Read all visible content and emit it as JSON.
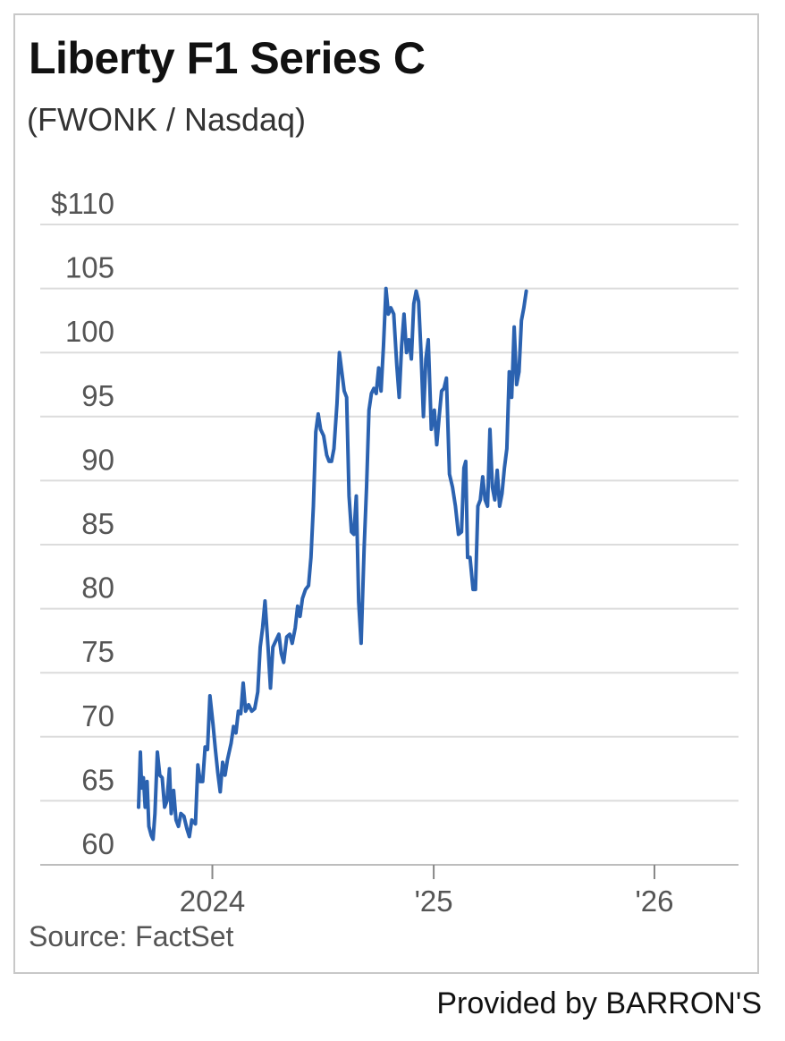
{
  "chart_data": {
    "type": "line",
    "title": "Liberty F1 Series C",
    "subtitle": "(FWONK / Nasdaq)",
    "source": "Source: FactSet",
    "credit": "Provided by BARRON'S",
    "ylim": [
      60,
      110
    ],
    "y_ticks": [
      {
        "value": 110,
        "label": "$110"
      },
      {
        "value": 105,
        "label": "105"
      },
      {
        "value": 100,
        "label": "100"
      },
      {
        "value": 95,
        "label": "95"
      },
      {
        "value": 90,
        "label": "90"
      },
      {
        "value": 85,
        "label": "85"
      },
      {
        "value": 80,
        "label": "80"
      },
      {
        "value": 75,
        "label": "75"
      },
      {
        "value": 70,
        "label": "70"
      },
      {
        "value": 65,
        "label": "65"
      },
      {
        "value": 60,
        "label": "60"
      }
    ],
    "x_range": [
      "2023-09-01",
      "2026-05-20"
    ],
    "x_ticks": [
      {
        "date": "2024-01-01",
        "label": "2024"
      },
      {
        "date": "2025-01-01",
        "label": "'25"
      },
      {
        "date": "2026-01-01",
        "label": "'26"
      }
    ],
    "grid": true,
    "line_color": "#2b62b0",
    "series": [
      {
        "values": [
          [
            "2023-09-01",
            64.5
          ],
          [
            "2023-09-04",
            68.8
          ],
          [
            "2023-09-06",
            66.0
          ],
          [
            "2023-09-09",
            66.8
          ],
          [
            "2023-09-12",
            64.5
          ],
          [
            "2023-09-15",
            66.5
          ],
          [
            "2023-09-18",
            63.0
          ],
          [
            "2023-09-22",
            62.3
          ],
          [
            "2023-09-25",
            62.0
          ],
          [
            "2023-09-28",
            64.0
          ],
          [
            "2023-10-02",
            68.8
          ],
          [
            "2023-10-06",
            67.0
          ],
          [
            "2023-10-10",
            66.8
          ],
          [
            "2023-10-14",
            64.5
          ],
          [
            "2023-10-18",
            65.0
          ],
          [
            "2023-10-22",
            67.5
          ],
          [
            "2023-10-25",
            64.0
          ],
          [
            "2023-10-29",
            65.8
          ],
          [
            "2023-11-02",
            63.5
          ],
          [
            "2023-11-06",
            63.0
          ],
          [
            "2023-11-10",
            64.0
          ],
          [
            "2023-11-15",
            63.8
          ],
          [
            "2023-11-20",
            62.8
          ],
          [
            "2023-11-24",
            62.2
          ],
          [
            "2023-11-28",
            63.5
          ],
          [
            "2023-12-04",
            63.2
          ],
          [
            "2023-12-08",
            67.8
          ],
          [
            "2023-12-12",
            66.5
          ],
          [
            "2023-12-16",
            66.5
          ],
          [
            "2023-12-20",
            69.2
          ],
          [
            "2023-12-24",
            69.0
          ],
          [
            "2023-12-28",
            73.2
          ],
          [
            "2024-01-02",
            71.0
          ],
          [
            "2024-01-06",
            69.0
          ],
          [
            "2024-01-10",
            67.2
          ],
          [
            "2024-01-14",
            65.7
          ],
          [
            "2024-01-18",
            68.0
          ],
          [
            "2024-01-22",
            67.0
          ],
          [
            "2024-01-26",
            68.2
          ],
          [
            "2024-02-01",
            69.5
          ],
          [
            "2024-02-05",
            70.8
          ],
          [
            "2024-02-09",
            70.3
          ],
          [
            "2024-02-13",
            72.0
          ],
          [
            "2024-02-17",
            71.8
          ],
          [
            "2024-02-21",
            74.2
          ],
          [
            "2024-02-25",
            72.0
          ],
          [
            "2024-03-01",
            72.5
          ],
          [
            "2024-03-06",
            72.0
          ],
          [
            "2024-03-11",
            72.2
          ],
          [
            "2024-03-16",
            73.5
          ],
          [
            "2024-03-20",
            77.0
          ],
          [
            "2024-03-24",
            78.5
          ],
          [
            "2024-03-28",
            80.6
          ],
          [
            "2024-04-02",
            77.0
          ],
          [
            "2024-04-06",
            73.8
          ],
          [
            "2024-04-10",
            77.0
          ],
          [
            "2024-04-15",
            77.5
          ],
          [
            "2024-04-20",
            78.0
          ],
          [
            "2024-04-24",
            76.5
          ],
          [
            "2024-04-28",
            75.8
          ],
          [
            "2024-05-03",
            77.8
          ],
          [
            "2024-05-08",
            78.0
          ],
          [
            "2024-05-12",
            77.3
          ],
          [
            "2024-05-17",
            78.5
          ],
          [
            "2024-05-21",
            80.2
          ],
          [
            "2024-05-25",
            79.4
          ],
          [
            "2024-05-29",
            80.8
          ],
          [
            "2024-06-03",
            81.5
          ],
          [
            "2024-06-08",
            81.8
          ],
          [
            "2024-06-12",
            84.0
          ],
          [
            "2024-06-16",
            88.0
          ],
          [
            "2024-06-20",
            93.8
          ],
          [
            "2024-06-24",
            95.2
          ],
          [
            "2024-06-28",
            94.0
          ],
          [
            "2024-07-03",
            93.5
          ],
          [
            "2024-07-08",
            92.0
          ],
          [
            "2024-07-12",
            91.5
          ],
          [
            "2024-07-16",
            91.5
          ],
          [
            "2024-07-20",
            92.5
          ],
          [
            "2024-07-25",
            96.0
          ],
          [
            "2024-07-29",
            100.0
          ],
          [
            "2024-08-02",
            98.5
          ],
          [
            "2024-08-06",
            97.0
          ],
          [
            "2024-08-10",
            96.5
          ],
          [
            "2024-08-14",
            88.8
          ],
          [
            "2024-08-18",
            86.0
          ],
          [
            "2024-08-22",
            85.8
          ],
          [
            "2024-08-26",
            88.8
          ],
          [
            "2024-08-30",
            80.5
          ],
          [
            "2024-09-03",
            77.3
          ],
          [
            "2024-09-08",
            84.8
          ],
          [
            "2024-09-12",
            89.5
          ],
          [
            "2024-09-16",
            95.5
          ],
          [
            "2024-09-20",
            96.8
          ],
          [
            "2024-09-24",
            97.2
          ],
          [
            "2024-09-28",
            96.8
          ],
          [
            "2024-10-02",
            98.8
          ],
          [
            "2024-10-06",
            97.0
          ],
          [
            "2024-10-10",
            100.5
          ],
          [
            "2024-10-14",
            105.0
          ],
          [
            "2024-10-18",
            103.0
          ],
          [
            "2024-10-22",
            103.5
          ],
          [
            "2024-10-27",
            103.0
          ],
          [
            "2024-11-01",
            99.0
          ],
          [
            "2024-11-05",
            96.5
          ],
          [
            "2024-11-09",
            100.5
          ],
          [
            "2024-11-13",
            103.0
          ],
          [
            "2024-11-17",
            100.0
          ],
          [
            "2024-11-21",
            101.0
          ],
          [
            "2024-11-25",
            99.5
          ],
          [
            "2024-11-29",
            103.8
          ],
          [
            "2024-12-03",
            104.8
          ],
          [
            "2024-12-07",
            104.0
          ],
          [
            "2024-12-11",
            100.0
          ],
          [
            "2024-12-15",
            95.0
          ],
          [
            "2024-12-19",
            99.5
          ],
          [
            "2024-12-23",
            101.0
          ],
          [
            "2024-12-28",
            94.0
          ],
          [
            "2025-01-02",
            95.5
          ],
          [
            "2025-01-06",
            92.8
          ],
          [
            "2025-01-10",
            95.0
          ],
          [
            "2025-01-14",
            97.0
          ],
          [
            "2025-01-18",
            97.2
          ],
          [
            "2025-01-22",
            98.0
          ],
          [
            "2025-01-27",
            90.5
          ],
          [
            "2025-02-01",
            89.5
          ],
          [
            "2025-02-06",
            88.0
          ],
          [
            "2025-02-11",
            85.8
          ],
          [
            "2025-02-16",
            86.0
          ],
          [
            "2025-02-20",
            91.0
          ],
          [
            "2025-02-23",
            91.5
          ],
          [
            "2025-02-26",
            84.0
          ],
          [
            "2025-03-02",
            84.0
          ],
          [
            "2025-03-07",
            81.5
          ],
          [
            "2025-03-11",
            81.5
          ],
          [
            "2025-03-15",
            88.0
          ],
          [
            "2025-03-19",
            88.5
          ],
          [
            "2025-03-23",
            90.3
          ],
          [
            "2025-03-27",
            88.5
          ],
          [
            "2025-03-31",
            88.0
          ],
          [
            "2025-04-04",
            94.0
          ],
          [
            "2025-04-08",
            89.5
          ],
          [
            "2025-04-12",
            88.5
          ],
          [
            "2025-04-16",
            90.8
          ],
          [
            "2025-04-20",
            88.0
          ],
          [
            "2025-04-24",
            89.0
          ],
          [
            "2025-04-28",
            91.0
          ],
          [
            "2025-05-02",
            92.5
          ],
          [
            "2025-05-06",
            98.5
          ],
          [
            "2025-05-10",
            96.5
          ],
          [
            "2025-05-14",
            102.0
          ],
          [
            "2025-05-18",
            97.5
          ],
          [
            "2025-05-22",
            98.5
          ],
          [
            "2025-05-26",
            102.5
          ],
          [
            "2025-05-30",
            103.5
          ],
          [
            "2025-06-03",
            104.8
          ]
        ]
      }
    ]
  }
}
